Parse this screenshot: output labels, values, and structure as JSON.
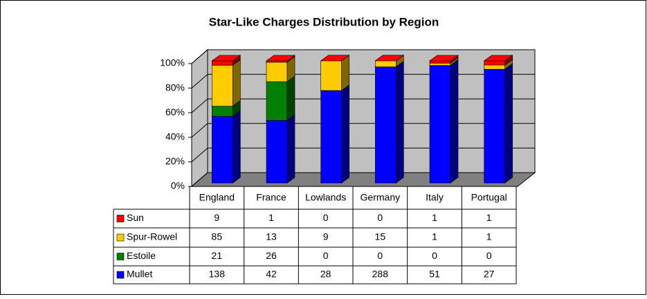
{
  "chart_data": {
    "type": "bar",
    "title": "Star-Like Charges Distribution by Region",
    "categories": [
      "England",
      "France",
      "Lowlands",
      "Germany",
      "Italy",
      "Portugal"
    ],
    "series": [
      {
        "name": "Sun",
        "color": "#ff0000",
        "values": [
          9,
          1,
          0,
          0,
          1,
          1
        ]
      },
      {
        "name": "Spur-Rowel",
        "color": "#ffcc00",
        "values": [
          85,
          13,
          9,
          15,
          1,
          1
        ]
      },
      {
        "name": "Estoile",
        "color": "#008000",
        "values": [
          21,
          26,
          0,
          0,
          0,
          0
        ]
      },
      {
        "name": "Mullet",
        "color": "#0000ff",
        "values": [
          138,
          42,
          28,
          288,
          51,
          27
        ]
      }
    ],
    "stacked": "percent",
    "ylim": [
      0,
      100
    ],
    "yticks": [
      {
        "value": 0,
        "label": "0%"
      },
      {
        "value": 20,
        "label": "20%"
      },
      {
        "value": 40,
        "label": "40%"
      },
      {
        "value": 60,
        "label": "60%"
      },
      {
        "value": 80,
        "label": "80%"
      },
      {
        "value": 100,
        "label": "100%"
      }
    ],
    "grid": true,
    "data_table": true
  }
}
